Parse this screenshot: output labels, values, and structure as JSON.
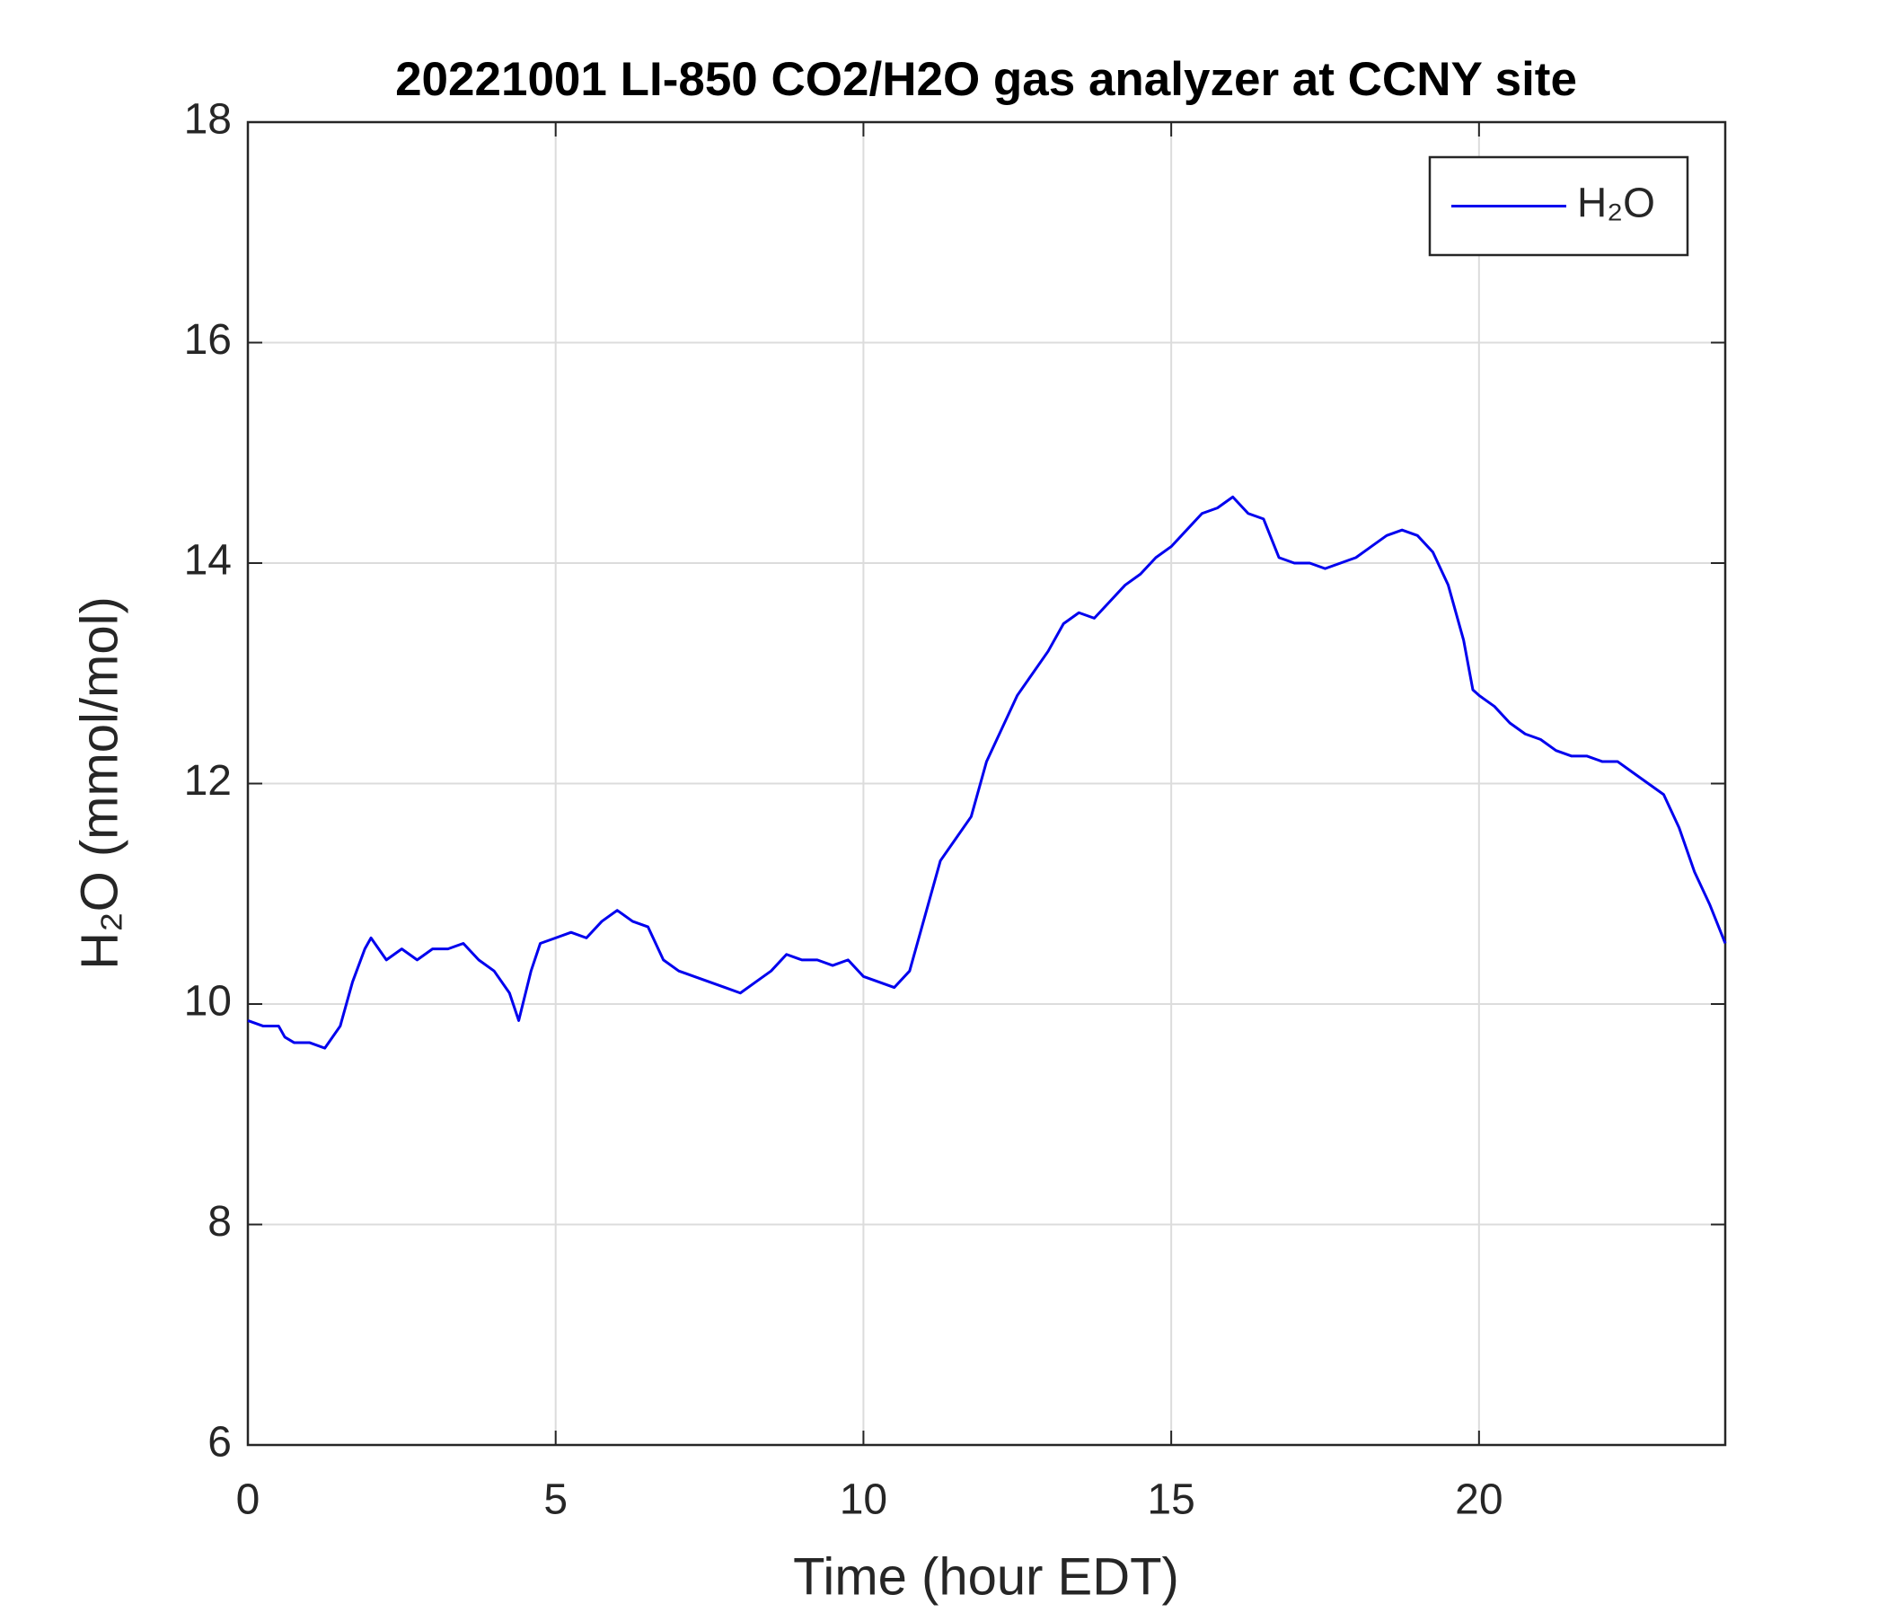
{
  "chart_data": {
    "type": "line",
    "title": "20221001 LI-850 CO2/H2O gas analyzer at CCNY site",
    "x_label": "Time (hour EDT)",
    "y_label": "H₂O (mmol/mol)",
    "x": [
      0,
      0.25,
      0.5,
      0.6,
      0.75,
      1,
      1.25,
      1.5,
      1.7,
      1.9,
      2,
      2.25,
      2.5,
      2.75,
      3,
      3.25,
      3.5,
      3.75,
      4,
      4.25,
      4.4,
      4.6,
      4.75,
      5,
      5.25,
      5.5,
      5.75,
      6,
      6.25,
      6.5,
      6.75,
      7,
      7.25,
      7.5,
      7.75,
      8,
      8.25,
      8.5,
      8.75,
      9,
      9.25,
      9.5,
      9.75,
      10,
      10.25,
      10.5,
      10.75,
      11,
      11.25,
      11.5,
      11.75,
      12,
      12.25,
      12.5,
      12.75,
      13,
      13.25,
      13.5,
      13.75,
      14,
      14.25,
      14.5,
      14.75,
      15,
      15.25,
      15.5,
      15.75,
      16,
      16.25,
      16.5,
      16.75,
      17,
      17.25,
      17.5,
      17.75,
      18,
      18.25,
      18.5,
      18.75,
      19,
      19.25,
      19.5,
      19.75,
      19.9,
      20,
      20.25,
      20.5,
      20.75,
      21,
      21.25,
      21.5,
      21.75,
      22,
      22.25,
      22.5,
      22.75,
      23,
      23.25,
      23.5,
      23.75,
      24
    ],
    "series": [
      {
        "name": "H₂O",
        "color": "#0000ee",
        "values": [
          9.85,
          9.8,
          9.8,
          9.7,
          9.65,
          9.65,
          9.6,
          9.8,
          10.2,
          10.5,
          10.6,
          10.4,
          10.5,
          10.4,
          10.5,
          10.5,
          10.55,
          10.4,
          10.3,
          10.1,
          9.85,
          10.3,
          10.55,
          10.6,
          10.65,
          10.6,
          10.75,
          10.85,
          10.75,
          10.7,
          10.4,
          10.3,
          10.25,
          10.2,
          10.15,
          10.1,
          10.2,
          10.3,
          10.45,
          10.4,
          10.4,
          10.35,
          10.4,
          10.25,
          10.2,
          10.15,
          10.3,
          10.8,
          11.3,
          11.5,
          11.7,
          12.2,
          12.5,
          12.8,
          13,
          13.2,
          13.45,
          13.55,
          13.5,
          13.65,
          13.8,
          13.9,
          14.05,
          14.15,
          14.3,
          14.45,
          14.5,
          14.6,
          14.45,
          14.4,
          14.05,
          14,
          14,
          13.95,
          14,
          14.05,
          14.15,
          14.25,
          14.3,
          14.25,
          14.1,
          13.8,
          13.3,
          12.85,
          12.8,
          12.7,
          12.55,
          12.45,
          12.4,
          12.3,
          12.25,
          12.25,
          12.2,
          12.2,
          12.1,
          12,
          11.9,
          11.6,
          11.2,
          10.9,
          10.55
        ]
      }
    ],
    "xlim": [
      0,
      24
    ],
    "xticks": [
      0,
      5,
      10,
      15,
      20
    ],
    "ylim": [
      6,
      18
    ],
    "yticks": [
      6,
      8,
      10,
      12,
      14,
      16,
      18
    ],
    "grid": true,
    "legend": "upper right"
  }
}
